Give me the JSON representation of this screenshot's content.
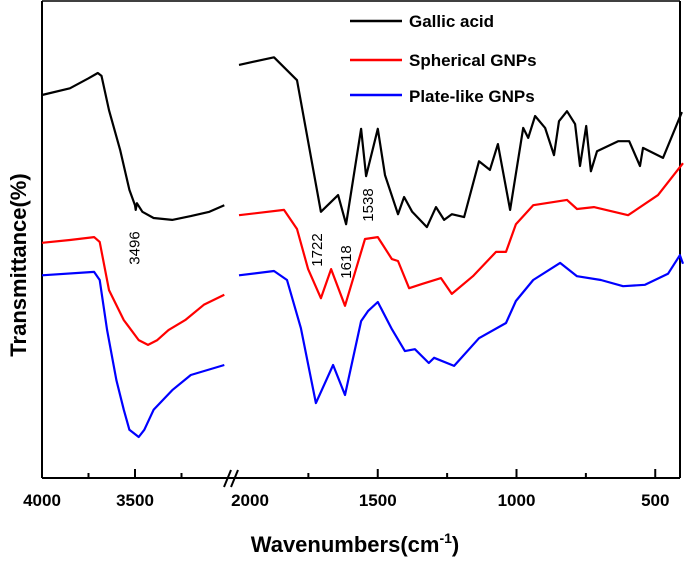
{
  "chart_data": {
    "type": "line",
    "title": "",
    "xlabel": "Wavenumbers(cm",
    "xlabel_superscript": "-1",
    "xlabel_suffix": ")",
    "ylabel": "Transmittance(%)",
    "x_axis": {
      "reversed": true,
      "broken": true,
      "segments": [
        [
          4000,
          3000
        ],
        [
          2000,
          400
        ]
      ],
      "tick_labels": [
        "4000",
        "3500",
        "2000",
        "1500",
        "1000",
        "500"
      ],
      "tick_values": [
        4000,
        3500,
        2000,
        1500,
        1000,
        500
      ],
      "minor_ticks": [
        3750,
        3250,
        1750,
        1250,
        750
      ]
    },
    "y_axis": {
      "ticks_shown": false,
      "ylim": [
        0,
        100
      ],
      "units": "arbitrary"
    },
    "grid": false,
    "legend_position": "top-right",
    "series": [
      {
        "name": "Gallic acid",
        "color": "#000000",
        "points": [
          [
            4000,
            80.3
          ],
          [
            3850,
            81.7
          ],
          [
            3750,
            83.8
          ],
          [
            3700,
            84.9
          ],
          [
            3680,
            84.3
          ],
          [
            3640,
            77.1
          ],
          [
            3580,
            68.8
          ],
          [
            3530,
            60.4
          ],
          [
            3500,
            57.2
          ],
          [
            3496,
            56.2
          ],
          [
            3490,
            57.6
          ],
          [
            3460,
            55.8
          ],
          [
            3400,
            54.5
          ],
          [
            3300,
            54.1
          ],
          [
            3200,
            54.9
          ],
          [
            3100,
            55.8
          ],
          [
            3020,
            57.2
          ],
          [
            2000,
            86.6
          ],
          [
            1874,
            88.2
          ],
          [
            1791,
            83.4
          ],
          [
            1705,
            55.8
          ],
          [
            1643,
            59.3
          ],
          [
            1614,
            53.2
          ],
          [
            1560,
            73.2
          ],
          [
            1542,
            63.3
          ],
          [
            1500,
            73.2
          ],
          [
            1474,
            63.5
          ],
          [
            1427,
            55.3
          ],
          [
            1405,
            58.9
          ],
          [
            1376,
            55.8
          ],
          [
            1323,
            52.6
          ],
          [
            1290,
            56.8
          ],
          [
            1261,
            54.1
          ],
          [
            1233,
            55.3
          ],
          [
            1189,
            54.7
          ],
          [
            1135,
            66.4
          ],
          [
            1096,
            64.6
          ],
          [
            1067,
            70.0
          ],
          [
            1023,
            56.2
          ],
          [
            976,
            73.4
          ],
          [
            958,
            71.3
          ],
          [
            933,
            75.9
          ],
          [
            897,
            73.4
          ],
          [
            865,
            67.7
          ],
          [
            847,
            74.8
          ],
          [
            818,
            76.9
          ],
          [
            789,
            74.2
          ],
          [
            771,
            65.4
          ],
          [
            749,
            73.8
          ],
          [
            732,
            64.3
          ],
          [
            710,
            68.5
          ],
          [
            634,
            70.6
          ],
          [
            594,
            70.6
          ],
          [
            555,
            65.4
          ],
          [
            544,
            69.2
          ],
          [
            472,
            67.1
          ],
          [
            404,
            76.7
          ]
        ]
      },
      {
        "name": "Spherical GNPs",
        "color": "#ff0000",
        "points": [
          [
            4000,
            49.3
          ],
          [
            3850,
            49.9
          ],
          [
            3720,
            50.5
          ],
          [
            3690,
            49.5
          ],
          [
            3640,
            39.4
          ],
          [
            3560,
            33.1
          ],
          [
            3480,
            28.9
          ],
          [
            3430,
            27.9
          ],
          [
            3380,
            28.9
          ],
          [
            3320,
            31.0
          ],
          [
            3230,
            33.1
          ],
          [
            3130,
            36.3
          ],
          [
            3020,
            38.4
          ],
          [
            2000,
            55.1
          ],
          [
            1838,
            56.2
          ],
          [
            1791,
            52.2
          ],
          [
            1751,
            43.8
          ],
          [
            1705,
            37.7
          ],
          [
            1668,
            43.8
          ],
          [
            1618,
            36.1
          ],
          [
            1546,
            50.1
          ],
          [
            1500,
            50.5
          ],
          [
            1449,
            45.9
          ],
          [
            1427,
            45.5
          ],
          [
            1387,
            39.8
          ],
          [
            1340,
            40.7
          ],
          [
            1272,
            41.9
          ],
          [
            1233,
            38.6
          ],
          [
            1157,
            42.3
          ],
          [
            1074,
            47.4
          ],
          [
            1038,
            47.4
          ],
          [
            1002,
            53.2
          ],
          [
            940,
            57.2
          ],
          [
            818,
            58.3
          ],
          [
            782,
            56.4
          ],
          [
            721,
            56.8
          ],
          [
            598,
            55.1
          ],
          [
            490,
            59.3
          ],
          [
            400,
            66.0
          ]
        ]
      },
      {
        "name": "Plate-like GNPs",
        "color": "#0000ff",
        "points": [
          [
            4000,
            42.5
          ],
          [
            3720,
            43.2
          ],
          [
            3690,
            41.5
          ],
          [
            3650,
            31.0
          ],
          [
            3600,
            20.5
          ],
          [
            3560,
            14.3
          ],
          [
            3530,
            10.1
          ],
          [
            3480,
            8.6
          ],
          [
            3450,
            10.1
          ],
          [
            3400,
            14.3
          ],
          [
            3300,
            18.4
          ],
          [
            3200,
            21.6
          ],
          [
            3020,
            23.7
          ],
          [
            2000,
            42.5
          ],
          [
            1874,
            43.4
          ],
          [
            1827,
            41.5
          ],
          [
            1777,
            31.4
          ],
          [
            1723,
            15.7
          ],
          [
            1661,
            23.7
          ],
          [
            1618,
            17.4
          ],
          [
            1560,
            32.9
          ],
          [
            1535,
            35.0
          ],
          [
            1500,
            36.9
          ],
          [
            1449,
            31.2
          ],
          [
            1402,
            26.6
          ],
          [
            1366,
            27.0
          ],
          [
            1316,
            24.1
          ],
          [
            1297,
            25.2
          ],
          [
            1225,
            23.5
          ],
          [
            1135,
            29.3
          ],
          [
            1038,
            32.5
          ],
          [
            1002,
            37.1
          ],
          [
            940,
            41.5
          ],
          [
            843,
            45.1
          ],
          [
            782,
            42.3
          ],
          [
            696,
            41.5
          ],
          [
            616,
            40.2
          ],
          [
            537,
            40.5
          ],
          [
            454,
            42.8
          ],
          [
            411,
            46.7
          ],
          [
            400,
            44.9
          ]
        ]
      }
    ],
    "annotations": [
      {
        "label": "3496",
        "x": 3496
      },
      {
        "label": "1722",
        "x": 1722
      },
      {
        "label": "1618",
        "x": 1618
      },
      {
        "label": "1538",
        "x": 1538
      }
    ]
  }
}
